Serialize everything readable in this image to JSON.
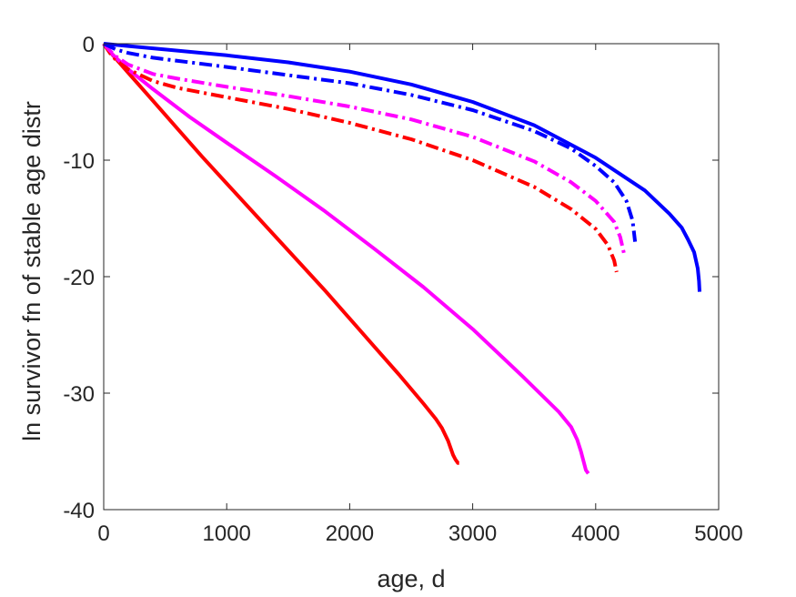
{
  "chart_data": {
    "type": "line",
    "xlabel": "age, d",
    "ylabel": "ln survivor fn of stable age distr",
    "xlim": [
      0,
      5000
    ],
    "ylim": [
      -40,
      0
    ],
    "xticks": [
      0,
      1000,
      2000,
      3000,
      4000,
      5000
    ],
    "xtick_labels": [
      "0",
      "1000",
      "2000",
      "3000",
      "4000",
      "5000"
    ],
    "yticks": [
      0,
      -10,
      -20,
      -30,
      -40
    ],
    "ytick_labels": [
      "0",
      "-10",
      "-20",
      "-30",
      "-40"
    ],
    "grid": false,
    "legend": "none",
    "series": [
      {
        "color": "#ff0000",
        "style": "solid",
        "x": [
          0,
          50,
          100,
          200,
          400,
          600,
          800,
          1000,
          1200,
          1400,
          1600,
          1800,
          2000,
          2200,
          2400,
          2600,
          2700,
          2750,
          2800,
          2820,
          2840,
          2860,
          2880,
          2890
        ],
        "y": [
          0,
          -0.7,
          -1.3,
          -2.5,
          -4.9,
          -7.3,
          -9.7,
          -12.0,
          -14.3,
          -16.6,
          -18.9,
          -21.2,
          -23.6,
          -26.0,
          -28.4,
          -30.9,
          -32.2,
          -33.0,
          -34.1,
          -34.7,
          -35.3,
          -35.7,
          -36.0,
          -36.0
        ]
      },
      {
        "color": "#ff00ff",
        "style": "solid",
        "x": [
          0,
          50,
          100,
          200,
          400,
          700,
          1000,
          1400,
          1800,
          2200,
          2600,
          3000,
          3400,
          3700,
          3800,
          3850,
          3880,
          3900,
          3920,
          3940
        ],
        "y": [
          0,
          -0.7,
          -1.2,
          -2.2,
          -3.9,
          -6.3,
          -8.5,
          -11.4,
          -14.4,
          -17.6,
          -20.9,
          -24.5,
          -28.5,
          -31.6,
          -32.9,
          -34.0,
          -35.0,
          -35.8,
          -36.6,
          -36.9
        ]
      },
      {
        "color": "#ff0000",
        "style": "dashdot",
        "x": [
          0,
          50,
          100,
          200,
          400,
          600,
          1000,
          1500,
          2000,
          2500,
          3000,
          3500,
          3800,
          4000,
          4100,
          4150,
          4170
        ],
        "y": [
          0,
          -0.8,
          -1.4,
          -2.2,
          -3.2,
          -3.8,
          -4.6,
          -5.6,
          -6.8,
          -8.2,
          -10.0,
          -12.3,
          -14.2,
          -15.9,
          -17.3,
          -18.6,
          -19.6
        ]
      },
      {
        "color": "#ff00ff",
        "style": "dashdot",
        "x": [
          0,
          50,
          100,
          200,
          400,
          600,
          1000,
          1500,
          2000,
          2500,
          3000,
          3500,
          3800,
          4000,
          4150,
          4200,
          4230
        ],
        "y": [
          0,
          -0.6,
          -1.1,
          -1.8,
          -2.6,
          -3.0,
          -3.7,
          -4.5,
          -5.4,
          -6.5,
          -8.0,
          -10.1,
          -11.9,
          -13.5,
          -15.3,
          -16.6,
          -18.0
        ]
      },
      {
        "color": "#0000ff",
        "style": "dashdot",
        "x": [
          0,
          100,
          200,
          400,
          700,
          1000,
          1500,
          2000,
          2500,
          3000,
          3500,
          3800,
          4000,
          4150,
          4250,
          4300,
          4320
        ],
        "y": [
          0,
          -0.5,
          -0.8,
          -1.2,
          -1.6,
          -2.0,
          -2.7,
          -3.4,
          -4.4,
          -5.7,
          -7.5,
          -9.0,
          -10.5,
          -11.9,
          -13.5,
          -15.2,
          -17.0
        ]
      },
      {
        "color": "#0000ff",
        "style": "solid",
        "x": [
          0,
          200,
          500,
          1000,
          1500,
          2000,
          2500,
          3000,
          3500,
          4000,
          4400,
          4600,
          4700,
          4750,
          4800,
          4830,
          4840,
          4845
        ],
        "y": [
          0,
          -0.2,
          -0.5,
          -1.0,
          -1.6,
          -2.4,
          -3.5,
          -5.0,
          -7.0,
          -9.8,
          -12.6,
          -14.6,
          -15.8,
          -16.8,
          -17.9,
          -19.3,
          -20.4,
          -21.3
        ]
      }
    ]
  }
}
